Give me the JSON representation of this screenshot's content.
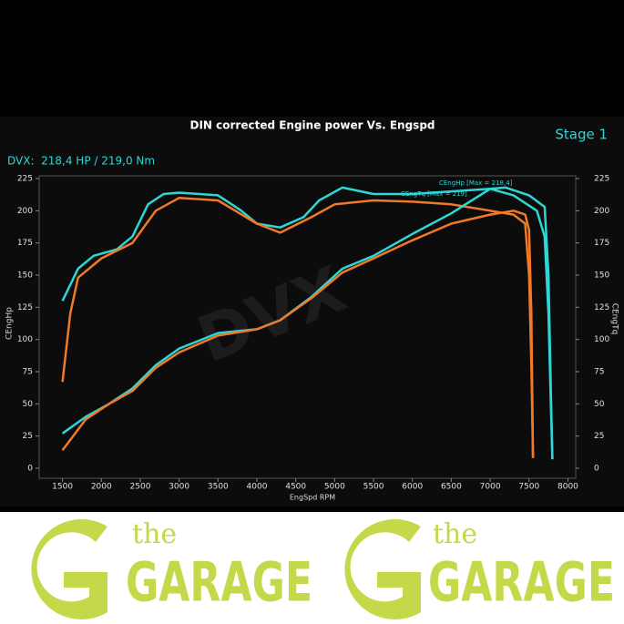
{
  "chart_data": {
    "type": "line",
    "title": "DIN corrected Engine power Vs. Engspd",
    "subtitle": "Stage 1",
    "summary": "DVX:  218,4 HP / 219,0 Nm",
    "xlabel": "EngSpd RPM",
    "ylabel": "CEngHp",
    "y2label": "CEngTq",
    "xlim": [
      1200,
      8100
    ],
    "xticks": [
      1500,
      2000,
      2500,
      3000,
      3500,
      4000,
      4500,
      5000,
      5500,
      6000,
      6500,
      7000,
      7500,
      8000
    ],
    "ylim": [
      0,
      225
    ],
    "yticks": [
      0,
      25,
      50,
      75,
      100,
      125,
      150,
      175,
      200,
      225
    ],
    "y2lim": [
      0,
      225
    ],
    "y2ticks": [
      0,
      25,
      50,
      75,
      100,
      125,
      150,
      175,
      200,
      225
    ],
    "series": [
      {
        "name": "CEngTq [Max = 219]",
        "color": "#2fd6d6",
        "axis": "y2",
        "x": [
          1500,
          1700,
          1900,
          2200,
          2400,
          2600,
          2800,
          3000,
          3500,
          3800,
          4000,
          4300,
          4600,
          4800,
          5100,
          5500,
          6000,
          6500,
          7000,
          7300,
          7600,
          7700,
          7750,
          7780,
          7800
        ],
        "values": [
          130,
          155,
          165,
          170,
          180,
          205,
          213,
          214,
          212,
          200,
          190,
          187,
          195,
          208,
          218,
          213,
          213,
          215,
          217,
          212,
          200,
          180,
          120,
          50,
          7
        ]
      },
      {
        "color": "#f07a28",
        "axis": "y2",
        "x": [
          1500,
          1600,
          1700,
          2000,
          2400,
          2700,
          3000,
          3500,
          4000,
          4300,
          4700,
          5000,
          5500,
          6000,
          6500,
          7000,
          7300,
          7450,
          7500,
          7530,
          7550
        ],
        "values": [
          67,
          120,
          148,
          163,
          175,
          200,
          210,
          208,
          190,
          183,
          195,
          205,
          208,
          207,
          205,
          200,
          197,
          190,
          150,
          80,
          8
        ]
      },
      {
        "name": "CEngHp [Max = 218,4]",
        "color": "#2fd6d6",
        "x": [
          1500,
          1800,
          2100,
          2400,
          2700,
          3000,
          3500,
          4000,
          4300,
          4700,
          5100,
          5500,
          6000,
          6500,
          7000,
          7200,
          7500,
          7700,
          7750,
          7780,
          7800
        ],
        "values": [
          27,
          40,
          50,
          62,
          80,
          93,
          105,
          108,
          115,
          133,
          155,
          165,
          182,
          198,
          217,
          218,
          212,
          203,
          150,
          60,
          7
        ]
      },
      {
        "color": "#f07a28",
        "x": [
          1500,
          1800,
          2100,
          2400,
          2700,
          3000,
          3500,
          4000,
          4300,
          4700,
          5100,
          5500,
          6000,
          6500,
          7000,
          7300,
          7450,
          7500,
          7530,
          7550
        ],
        "values": [
          14,
          38,
          50,
          60,
          78,
          90,
          103,
          108,
          115,
          132,
          152,
          163,
          177,
          190,
          197,
          200,
          197,
          185,
          120,
          8
        ]
      }
    ]
  },
  "branding": [
    {
      "small": "the",
      "big": "GARAGE"
    },
    {
      "small": "the",
      "big": "GARAGE"
    }
  ]
}
